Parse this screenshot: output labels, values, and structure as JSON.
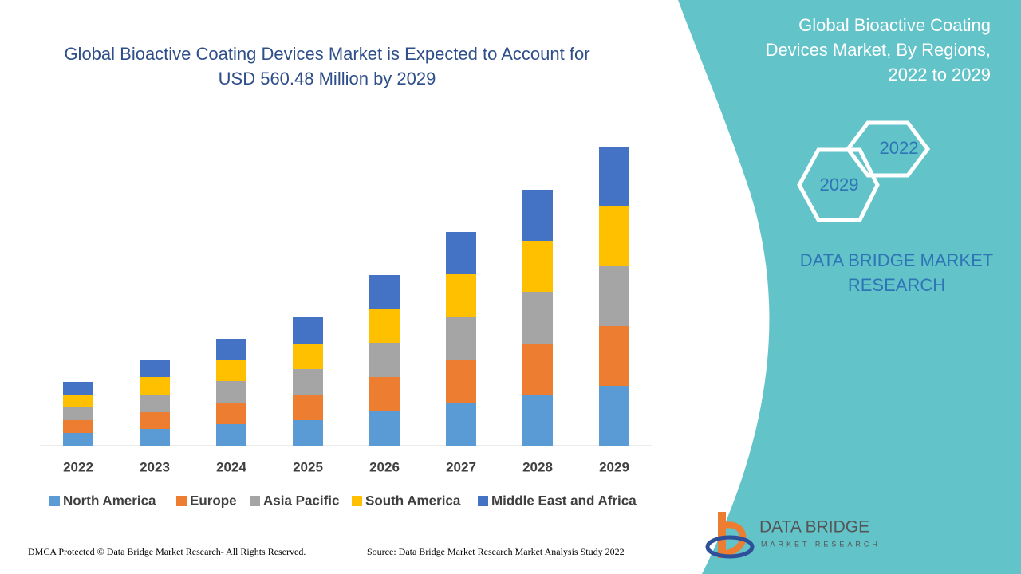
{
  "chart_data": {
    "type": "bar",
    "stacked": true,
    "title": "Global Bioactive Coating Devices Market is Expected to Account for USD 560.48 Million by 2029",
    "categories": [
      "2022",
      "2023",
      "2024",
      "2025",
      "2026",
      "2027",
      "2028",
      "2029"
    ],
    "series": [
      {
        "name": "North America",
        "color": "#5b9bd5",
        "values": [
          16,
          21,
          27,
          32,
          43,
          54,
          64,
          75
        ]
      },
      {
        "name": "Europe",
        "color": "#ed7d31",
        "values": [
          16,
          21,
          27,
          32,
          43,
          54,
          64,
          75
        ]
      },
      {
        "name": "Asia Pacific",
        "color": "#a5a5a5",
        "values": [
          16,
          22,
          27,
          32,
          43,
          53,
          65,
          75
        ]
      },
      {
        "name": "South America",
        "color": "#ffc000",
        "values": [
          16,
          22,
          26,
          32,
          43,
          54,
          64,
          75
        ]
      },
      {
        "name": "Middle East and Africa",
        "color": "#4472c4",
        "values": [
          16,
          21,
          27,
          33,
          42,
          53,
          64,
          75
        ]
      }
    ]
  },
  "side": {
    "title": "Global Bioactive Coating Devices Market, By Regions, 2022 to 2029",
    "hex_top": "2022",
    "hex_bottom": "2029",
    "brand": "DATA BRIDGE MARKET RESEARCH"
  },
  "logo": {
    "name": "DATA BRIDGE",
    "tagline": "MARKET RESEARCH"
  },
  "footer": {
    "rights": "DMCA Protected © Data Bridge Market Research- All Rights Reserved.",
    "source": "Source: Data Bridge Market Research Market Analysis Study 2022"
  }
}
